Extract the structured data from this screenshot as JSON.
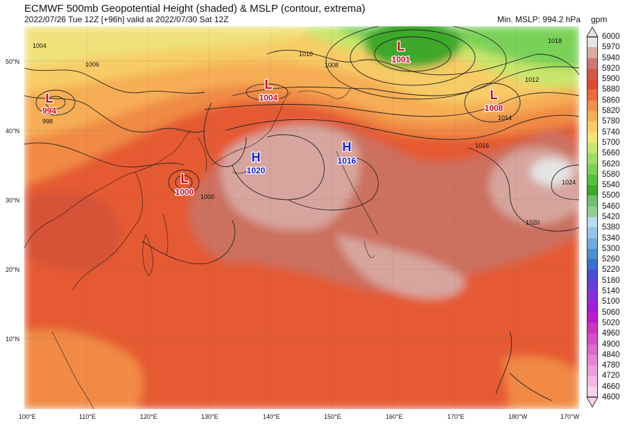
{
  "header": {
    "title": "ECMWF 500mb Geopotential Height (shaded) & MSLP (contour, extrema)",
    "subtitle": "2022/07/26 Tue 12Z [+96h] valid at 2022/07/30 Sat 12Z",
    "min_mslp": "Min. MSLP: 994.2 hPa",
    "units": "gpm"
  },
  "axes": {
    "lon": [
      "100°E",
      "110°E",
      "120°E",
      "130°E",
      "140°E",
      "150°E",
      "160°E",
      "170°E",
      "180°W",
      "170°W"
    ],
    "lat": [
      "50°N",
      "40°N",
      "30°N",
      "20°N",
      "10°N"
    ]
  },
  "extrema": [
    {
      "type": "L",
      "value": "994",
      "color": "#d0021b"
    },
    {
      "type": "L",
      "value": "1004",
      "color": "#d0021b"
    },
    {
      "type": "L",
      "value": "1001",
      "color": "#d0021b"
    },
    {
      "type": "L",
      "value": "1008",
      "color": "#d0021b"
    },
    {
      "type": "L",
      "value": "1000",
      "color": "#d0021b"
    },
    {
      "type": "H",
      "value": "1020",
      "color": "#0a1ed8"
    },
    {
      "type": "H",
      "value": "1016",
      "color": "#0a1ed8"
    }
  ],
  "isobar_labels": [
    "1004",
    "1006",
    "1008",
    "1010",
    "1012",
    "1014",
    "1016",
    "1018",
    "1020",
    "1024",
    "998",
    "1000"
  ],
  "colorbar": {
    "levels": [
      "6000",
      "5970",
      "5940",
      "5920",
      "5900",
      "5880",
      "5860",
      "5820",
      "5780",
      "5740",
      "5700",
      "5660",
      "5620",
      "5580",
      "5540",
      "5500",
      "5460",
      "5420",
      "5380",
      "5340",
      "5300",
      "5260",
      "5220",
      "5180",
      "5140",
      "5100",
      "5060",
      "5020",
      "4960",
      "4900",
      "4840",
      "4780",
      "4720",
      "4660",
      "4600"
    ],
    "colors": [
      "#e4e4e4",
      "#d9aaa4",
      "#cc7a70",
      "#cf5a45",
      "#de4a33",
      "#ef6a3a",
      "#f3904a",
      "#f6ad55",
      "#f8cd66",
      "#f1e477",
      "#c9e56c",
      "#9fdc66",
      "#79d158",
      "#55c03d",
      "#3da82a",
      "#6fbf6f",
      "#92ce92",
      "#b7dcee",
      "#93c3e6",
      "#6eaadc",
      "#4b8fd2",
      "#3a6fd0",
      "#4b4bd4",
      "#6a3dd6",
      "#8a2fd8",
      "#a01ed6",
      "#bb1ec8",
      "#cc35c0",
      "#d64fc4",
      "#de6acb",
      "#e686d3",
      "#ee9fdb",
      "#f4b8e4",
      "#f8d1ee"
    ]
  }
}
